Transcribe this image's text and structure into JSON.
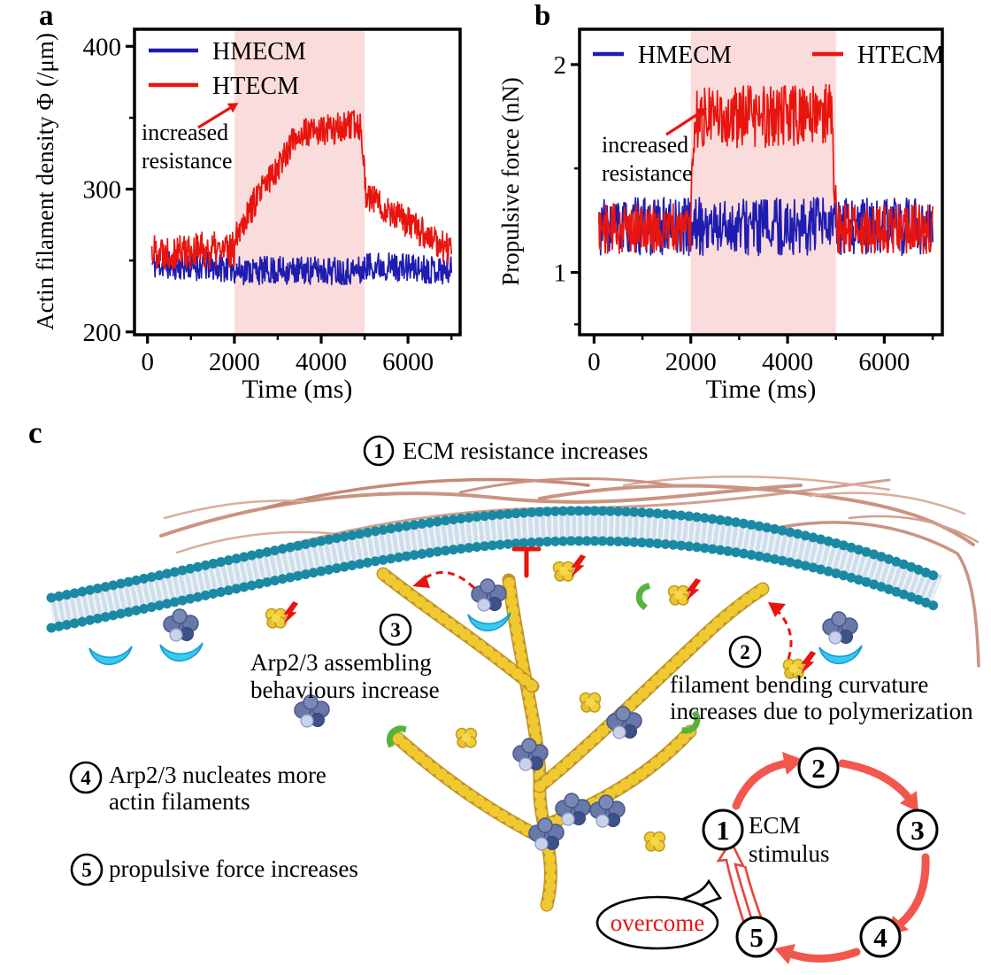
{
  "figure": {
    "panel_labels": {
      "a": "a",
      "b": "b",
      "c": "c"
    }
  },
  "chart_data": [
    {
      "type": "line",
      "panel": "a",
      "xlabel": "Time (ms)",
      "ylabel": "Actin filament density Φ (/μm)",
      "xlim": [
        -300,
        7200
      ],
      "xticks": [
        0,
        2000,
        4000,
        6000
      ],
      "xminor": [
        1000,
        3000,
        5000,
        7000
      ],
      "ylim": [
        198,
        412
      ],
      "yticks": [
        200,
        300,
        400
      ],
      "yminor": [
        250,
        350
      ],
      "grid": false,
      "shaded_region": {
        "x0": 2000,
        "x1": 5000,
        "color": "#fbdcdc"
      },
      "annotation": {
        "lines": [
          "increased",
          "resistance"
        ],
        "arrow_color": "#e8150f"
      },
      "legend_position": "top-left-stacked",
      "legend": [
        {
          "label": "HMECM",
          "color": "#1f1db0"
        },
        {
          "label": "HTECM",
          "color": "#e8150f"
        }
      ],
      "series": [
        {
          "name": "HMECM",
          "color": "#1f1db0",
          "seed": 11,
          "t_start": 100,
          "t_end": 7000,
          "dt": 12,
          "segments": [
            {
              "until": 2000,
              "from": 247,
              "to": 245,
              "noise": 10
            },
            {
              "until": 5000,
              "from": 243,
              "to": 243,
              "noise": 10
            },
            {
              "until": 7000,
              "from": 247,
              "to": 243,
              "noise": 10
            }
          ]
        },
        {
          "name": "HTECM",
          "color": "#e8150f",
          "seed": 22,
          "t_start": 100,
          "t_end": 7000,
          "dt": 12,
          "segments": [
            {
              "until": 2000,
              "from": 257,
              "to": 257,
              "noise": 13
            },
            {
              "until": 3400,
              "from": 268,
              "to": 336,
              "noise": 11
            },
            {
              "until": 4930,
              "from": 338,
              "to": 345,
              "noise": 11
            },
            {
              "until": 5030,
              "from": 340,
              "to": 298,
              "noise": 8
            },
            {
              "until": 7000,
              "from": 296,
              "to": 256,
              "noise": 11
            }
          ]
        }
      ]
    },
    {
      "type": "line",
      "panel": "b",
      "xlabel": "Time (ms)",
      "ylabel": "Propulsive force (nN)",
      "xlim": [
        -300,
        7200
      ],
      "xticks": [
        0,
        2000,
        4000,
        6000
      ],
      "xminor": [
        1000,
        3000,
        5000,
        7000
      ],
      "ylim": [
        0.7,
        2.17
      ],
      "yticks": [
        1,
        2
      ],
      "yminor": [
        0.75,
        1.5
      ],
      "grid": false,
      "shaded_region": {
        "x0": 2000,
        "x1": 5000,
        "color": "#fbdcdc"
      },
      "annotation": {
        "lines": [
          "increased",
          "resistance"
        ],
        "arrow_color": "#e8150f"
      },
      "legend_position": "top-row",
      "legend": [
        {
          "label": "HMECM",
          "color": "#1f1db0"
        },
        {
          "label": "HTECM",
          "color": "#e8150f"
        }
      ],
      "series": [
        {
          "name": "HMECM",
          "color": "#1f1db0",
          "seed": 33,
          "t_start": 100,
          "t_end": 7000,
          "dt": 12,
          "segments": [
            {
              "until": 7000,
              "from": 1.22,
              "to": 1.22,
              "noise": 0.14
            }
          ]
        },
        {
          "name": "HTECM",
          "color": "#e8150f",
          "seed": 44,
          "t_start": 100,
          "t_end": 7000,
          "dt": 12,
          "segments": [
            {
              "until": 2000,
              "from": 1.21,
              "to": 1.21,
              "noise": 0.12
            },
            {
              "until": 2130,
              "from": 1.4,
              "to": 1.82,
              "noise": 0.07
            },
            {
              "until": 4940,
              "from": 1.74,
              "to": 1.76,
              "noise": 0.15
            },
            {
              "until": 5040,
              "from": 1.5,
              "to": 1.22,
              "noise": 0.08
            },
            {
              "until": 7000,
              "from": 1.21,
              "to": 1.21,
              "noise": 0.12
            }
          ]
        }
      ]
    }
  ],
  "panel_c": {
    "callouts": [
      {
        "num": "1",
        "lines": [
          "ECM resistance increases"
        ]
      },
      {
        "num": "2",
        "lines": [
          "filament bending curvature",
          "increases due to polymerization"
        ]
      },
      {
        "num": "3",
        "lines": [
          "Arp2/3 assembling",
          "behaviours increase"
        ]
      },
      {
        "num": "4",
        "lines": [
          "Arp2/3 nucleates more",
          "actin filaments"
        ]
      },
      {
        "num": "5",
        "lines": [
          "propulsive force increases"
        ]
      }
    ],
    "cycle": {
      "nodes": [
        "1",
        "2",
        "3",
        "4",
        "5"
      ],
      "label_lines": [
        "ECM",
        "stimulus"
      ],
      "bubble": "overcome",
      "arrow_color": "#f1574d"
    },
    "colors": {
      "ecm_fiber": "#c68b78",
      "membrane_bead": "#1a8aa4",
      "membrane_core": "#cfdeea",
      "actin": "#efc92f",
      "arp": "#6878a8",
      "crescent": "#38c9f2",
      "cap": "#58b33d",
      "accent_red": "#e8150f"
    }
  }
}
